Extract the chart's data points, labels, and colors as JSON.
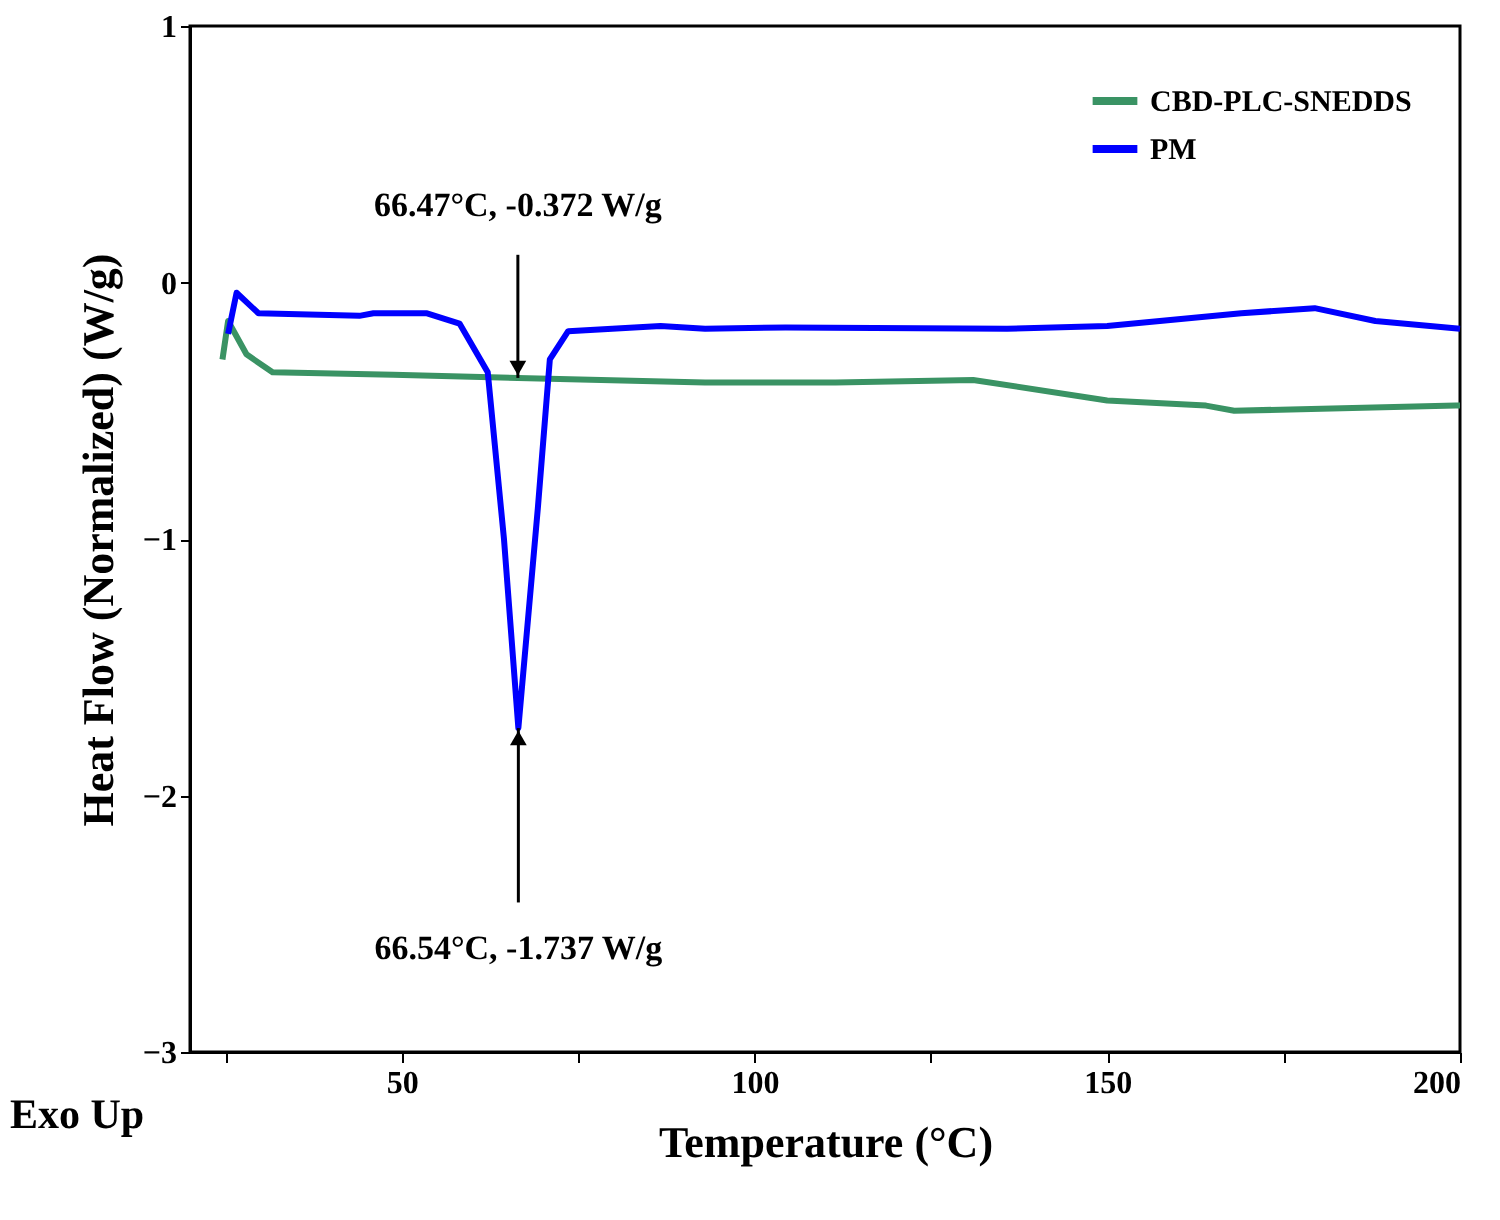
{
  "chart_data": {
    "type": "line",
    "xlabel": "Temperature (°C)",
    "ylabel": "Heat Flow (Normalized) (W/g)",
    "xlim": [
      20,
      200
    ],
    "ylim": [
      -3,
      1
    ],
    "xticks": [
      {
        "value": 25,
        "label": null
      },
      50,
      {
        "value": 75,
        "label": null
      },
      100,
      {
        "value": 125,
        "label": null
      },
      150,
      {
        "value": 175,
        "label": null
      },
      200
    ],
    "yticks": [
      {
        "value": -3,
        "label": "−3"
      },
      {
        "value": -2,
        "label": "−2"
      },
      {
        "value": -1,
        "label": "−1"
      },
      0,
      1
    ],
    "grid": false,
    "legend": "top right",
    "marker": "none",
    "line_style": "solid",
    "series": [
      {
        "name": "CBD-PLC-SNEDDS",
        "color": "#3a9364",
        "x": [
          24.6,
          25.4,
          28,
          31.7,
          48.8,
          66.47,
          93,
          111.5,
          131,
          150,
          164,
          168,
          199.4,
          200
        ],
        "values": [
          -0.3,
          -0.15,
          -0.28,
          -0.35,
          -0.36,
          -0.372,
          -0.39,
          -0.39,
          -0.38,
          -0.46,
          -0.48,
          -0.5,
          -0.48,
          -0.48
        ]
      },
      {
        "name": "PM",
        "color": "#0000ff",
        "x": [
          25.4,
          26.6,
          29.7,
          44,
          46,
          53.6,
          58.2,
          62.2,
          64.5,
          66.54,
          69.3,
          71,
          73.6,
          86.7,
          93,
          104.4,
          135.8,
          150,
          169,
          179.4,
          188,
          200
        ],
        "values": [
          -0.2,
          -0.04,
          -0.12,
          -0.13,
          -0.12,
          -0.12,
          -0.16,
          -0.35,
          -1.0,
          -1.737,
          -0.88,
          -0.3,
          -0.19,
          -0.17,
          -0.18,
          -0.175,
          -0.18,
          -0.17,
          -0.12,
          -0.1,
          -0.15,
          -0.18
        ]
      }
    ],
    "annotations": [
      {
        "text": "66.47°C, -0.372 W/g",
        "x": 66.47,
        "y": -0.372
      },
      {
        "text": "66.54°C, -1.737 W/g",
        "x": 66.54,
        "y": -1.737
      },
      "Exo Up"
    ]
  }
}
